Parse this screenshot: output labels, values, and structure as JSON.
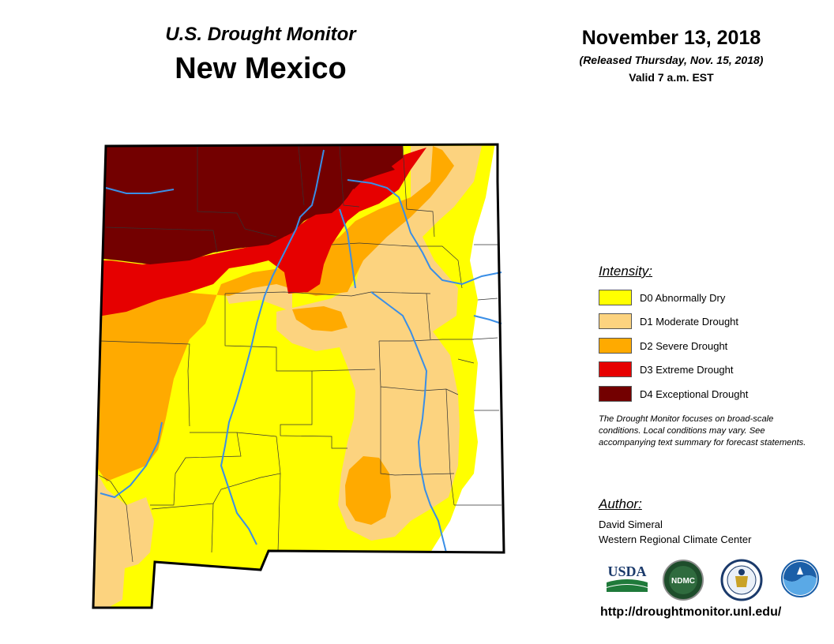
{
  "header": {
    "subtitle": "U.S. Drought Monitor",
    "title": "New Mexico",
    "date": "November 13, 2018",
    "released": "(Released Thursday, Nov. 15, 2018)",
    "valid": "Valid 7 a.m. EST"
  },
  "legend": {
    "title": "Intensity:",
    "items": [
      {
        "label": "D0 Abnormally Dry",
        "color": "#ffff00"
      },
      {
        "label": "D1 Moderate Drought",
        "color": "#fcd37f"
      },
      {
        "label": "D2 Severe Drought",
        "color": "#ffaa00"
      },
      {
        "label": "D3 Extreme Drought",
        "color": "#e60000"
      },
      {
        "label": "D4 Exceptional Drought",
        "color": "#730000"
      }
    ]
  },
  "note": "The Drought Monitor focuses on broad-scale conditions. Local conditions may vary. See accompanying text summary for forecast statements.",
  "author": {
    "title": "Author:",
    "name": "David Simeral",
    "org": "Western Regional Climate Center"
  },
  "logos": {
    "usda": "USDA",
    "ndmc": "NDMC",
    "commerce": "commerce-seal",
    "noaa": "NOAA"
  },
  "url": "http://droughtmonitor.unl.edu/",
  "colors": {
    "none": "#ffffff",
    "d0": "#ffff00",
    "d1": "#fcd37f",
    "d2": "#ffaa00",
    "d3": "#e60000",
    "d4": "#730000",
    "river": "#3a8ee6",
    "border": "#000000"
  }
}
